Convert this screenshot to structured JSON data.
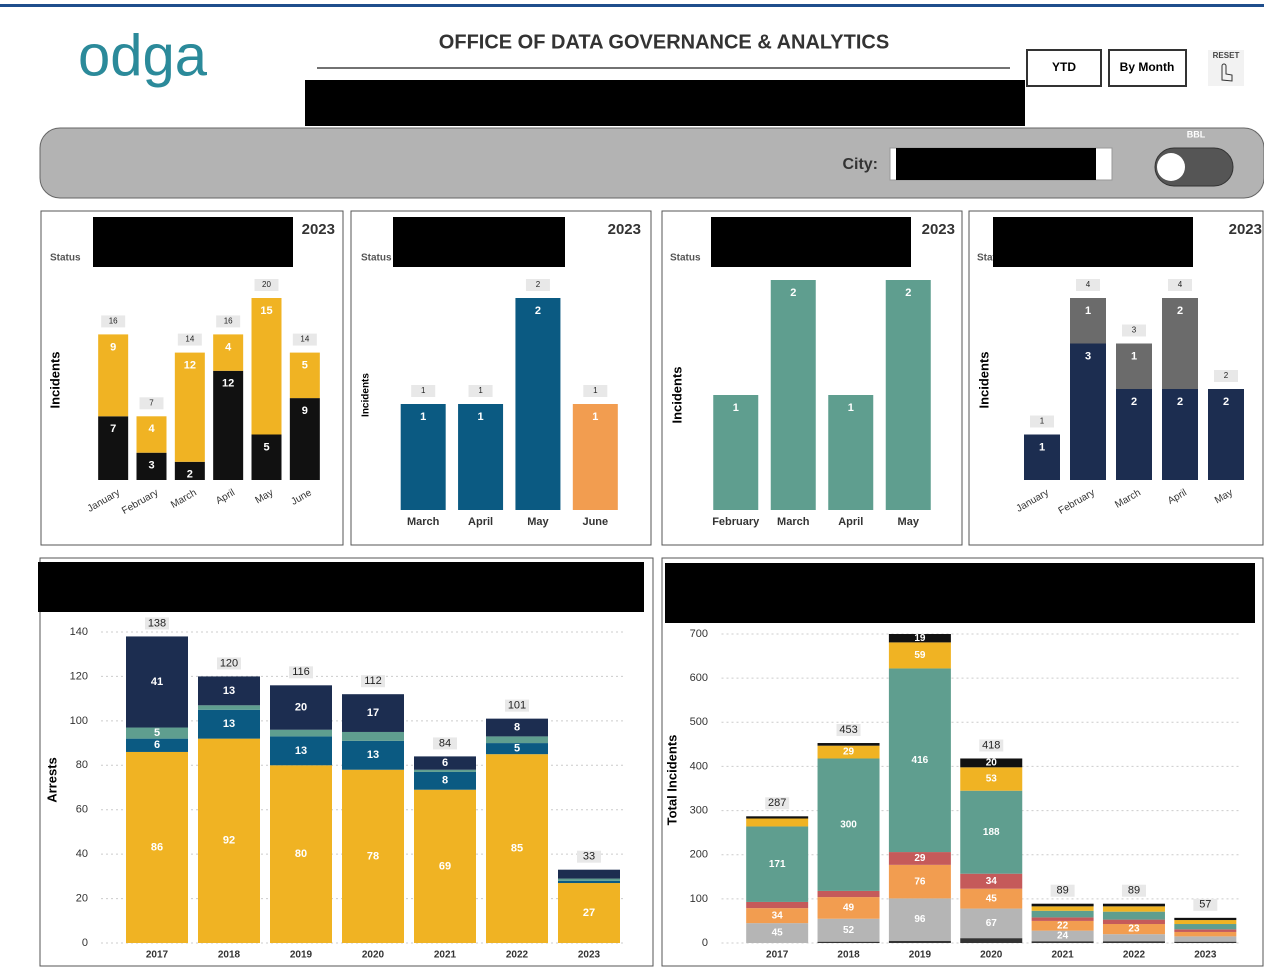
{
  "header": {
    "logo": "odga",
    "title": "OFFICE OF DATA GOVERNANCE & ANALYTICS",
    "buttons": [
      "YTD",
      "By Month"
    ],
    "reset": "RESET"
  },
  "filters": {
    "city_label": "City:",
    "toggle_label": "BBL"
  },
  "chart_data": [
    {
      "type": "stacked-bar",
      "year_label": "2023",
      "status_label": "Status",
      "y_label": "Incidents",
      "categories": [
        "January",
        "February",
        "March",
        "April",
        "May",
        "June"
      ],
      "series": [
        {
          "color": "#111111",
          "values": [
            7,
            3,
            2,
            12,
            5,
            9
          ]
        },
        {
          "color": "#f0b323",
          "values": [
            9,
            4,
            12,
            4,
            15,
            5
          ]
        }
      ],
      "totals": [
        16,
        7,
        14,
        16,
        20,
        14
      ]
    },
    {
      "type": "bar",
      "year_label": "2023",
      "status_label": "Status",
      "y_label": "Incidents",
      "categories": [
        "March",
        "April",
        "May",
        "June"
      ],
      "values": [
        1,
        1,
        2,
        1
      ],
      "colors": [
        "#0b5a82",
        "#0b5a82",
        "#0b5a82",
        "#f29d50"
      ]
    },
    {
      "type": "bar",
      "year_label": "2023",
      "status_label": "Status",
      "y_label": "Incidents",
      "categories": [
        "February",
        "March",
        "April",
        "May"
      ],
      "values": [
        1,
        2,
        1,
        2
      ],
      "color": "#5f9e8f"
    },
    {
      "type": "stacked-bar",
      "year_label": "2023",
      "status_label": "Status",
      "y_label": "Incidents",
      "categories": [
        "January",
        "February",
        "March",
        "April",
        "May"
      ],
      "series": [
        {
          "color": "#1c2d50",
          "values": [
            1,
            3,
            2,
            2,
            2
          ]
        },
        {
          "color": "#6b6b6b",
          "values": [
            null,
            1,
            1,
            2,
            null
          ]
        }
      ],
      "totals": [
        1,
        4,
        3,
        4,
        2
      ]
    },
    {
      "type": "stacked-bar",
      "y_label": "Arrests",
      "categories": [
        "2017",
        "2018",
        "2019",
        "2020",
        "2021",
        "2022",
        "2023"
      ],
      "series": [
        {
          "color": "#f0b323",
          "values": [
            86,
            92,
            80,
            78,
            69,
            85,
            27
          ]
        },
        {
          "color": "#0b5a82",
          "values": [
            6,
            13,
            13,
            13,
            8,
            5,
            1
          ]
        },
        {
          "color": "#5f9e8f",
          "values": [
            5,
            2,
            3,
            4,
            1,
            3,
            1
          ]
        },
        {
          "color": "#1c2d50",
          "values": [
            41,
            13,
            20,
            17,
            6,
            8,
            4
          ]
        }
      ],
      "totals": [
        138,
        120,
        116,
        112,
        84,
        101,
        33
      ],
      "ylim": [
        0,
        140
      ],
      "yticks": [
        0,
        20,
        40,
        60,
        80,
        100,
        120,
        140
      ],
      "grid": true
    },
    {
      "type": "stacked-bar",
      "y_label": "Total Incidents",
      "categories": [
        "2017",
        "2018",
        "2019",
        "2020",
        "2021",
        "2022",
        "2023"
      ],
      "series": [
        {
          "color": "#333333",
          "values": [
            null,
            3,
            5,
            11,
            4,
            4,
            3
          ]
        },
        {
          "color": "#b5b5b5",
          "values": [
            45,
            52,
            96,
            67,
            24,
            16,
            12
          ]
        },
        {
          "color": "#f29d50",
          "values": [
            34,
            49,
            76,
            45,
            22,
            23,
            10
          ]
        },
        {
          "color": "#c55a5a",
          "values": [
            14,
            14,
            29,
            34,
            8,
            10,
            6
          ]
        },
        {
          "color": "#5f9e8f",
          "values": [
            171,
            300,
            416,
            188,
            15,
            18,
            12
          ]
        },
        {
          "color": "#f0b323",
          "values": [
            18,
            29,
            59,
            53,
            10,
            12,
            9
          ]
        },
        {
          "color": "#111111",
          "values": [
            5,
            6,
            19,
            20,
            6,
            6,
            5
          ]
        }
      ],
      "totals": [
        287,
        453,
        null,
        418,
        89,
        89,
        57
      ],
      "ylim": [
        0,
        700
      ],
      "yticks": [
        0,
        100,
        200,
        300,
        400,
        500,
        600,
        700
      ],
      "grid": true
    }
  ]
}
